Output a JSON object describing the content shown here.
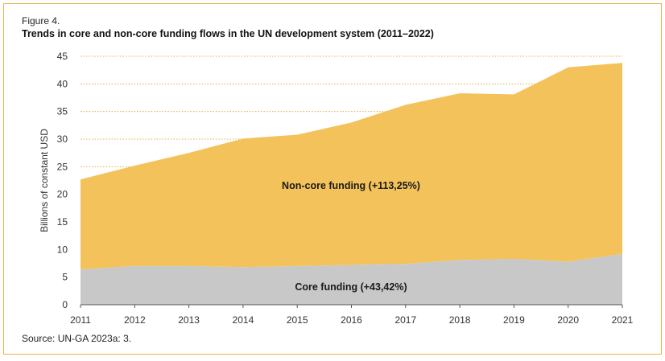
{
  "figure": {
    "label": "Figure 4.",
    "title": "Trends in core and non-core funding flows in the UN development system (2011–2022)",
    "source": "Source: UN-GA 2023a: 3."
  },
  "chart_data": {
    "type": "area",
    "stacked": true,
    "x": [
      2011,
      2012,
      2013,
      2014,
      2015,
      2016,
      2017,
      2018,
      2019,
      2020,
      2021
    ],
    "xticks": [
      "2011",
      "2012",
      "2013",
      "2014",
      "2015",
      "2016",
      "2017",
      "2018",
      "2019",
      "2020",
      "2021"
    ],
    "yticks": [
      "0",
      "5",
      "10",
      "15",
      "20",
      "25",
      "30",
      "35",
      "40",
      "45"
    ],
    "ylabel": "Billions of constant USD",
    "ylim": [
      0,
      45
    ],
    "grid": "horizontal dotted",
    "series": [
      {
        "name": "Core funding (+43,42%)",
        "color": "#c8c8c8",
        "values": [
          6.4,
          7.0,
          7.0,
          6.8,
          7.0,
          7.2,
          7.4,
          8.1,
          8.3,
          7.8,
          9.2
        ]
      },
      {
        "name": "Non-core funding (+113,25%)",
        "color": "#f4c25b",
        "values": [
          16.3,
          18.2,
          20.5,
          23.3,
          23.8,
          25.8,
          28.8,
          30.2,
          29.8,
          35.2,
          34.6
        ]
      }
    ],
    "totals": [
      22.7,
      25.2,
      27.5,
      30.1,
      30.8,
      33.0,
      36.2,
      38.3,
      38.1,
      43.0,
      43.8
    ]
  }
}
